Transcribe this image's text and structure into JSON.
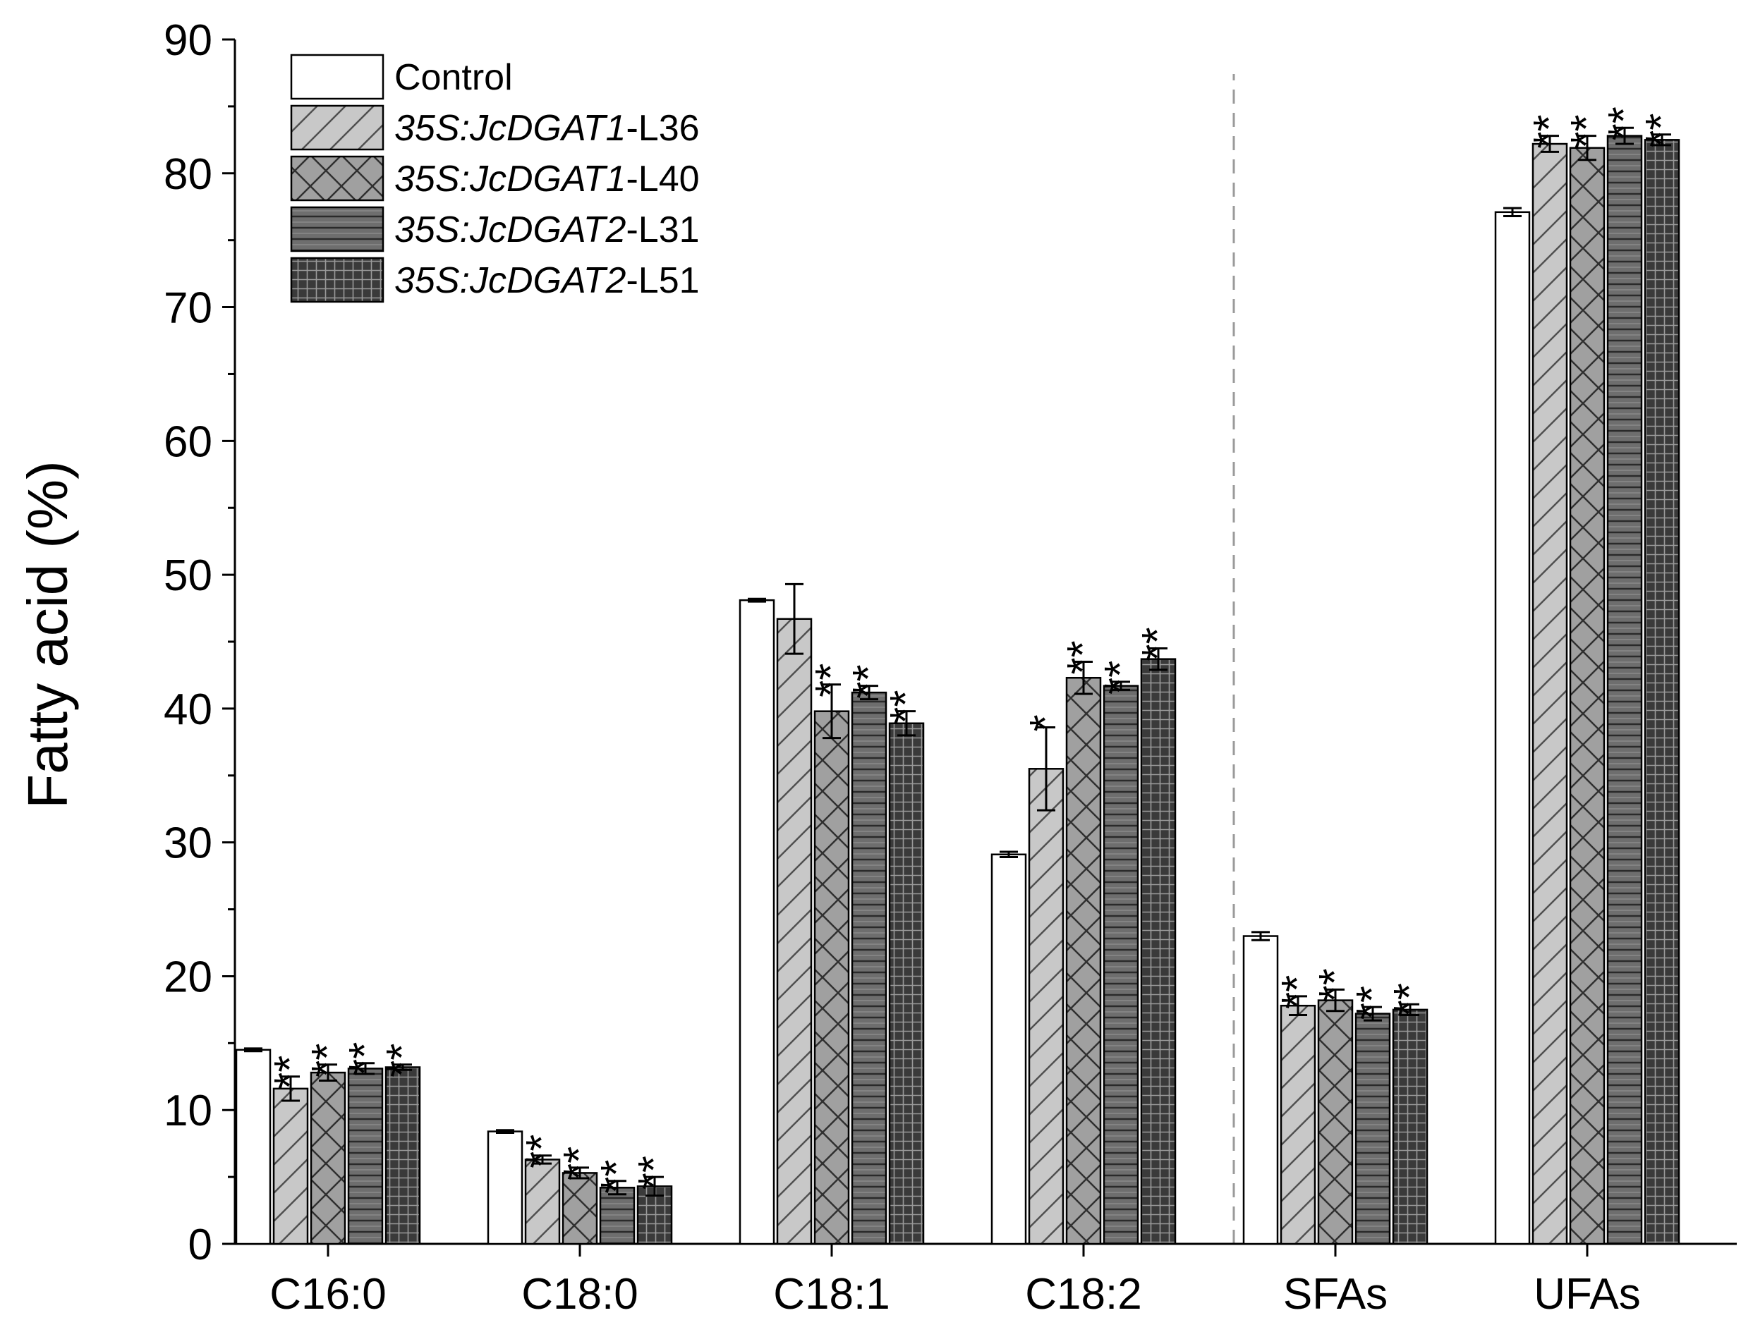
{
  "chart_data": {
    "type": "bar",
    "title": "",
    "xlabel": "",
    "ylabel": "Fatty acid (%)",
    "ylim": [
      0,
      90
    ],
    "yticks": [
      0,
      10,
      20,
      30,
      40,
      50,
      60,
      70,
      80,
      90
    ],
    "grid": false,
    "legend_position": "top-left",
    "separator_between": [
      "C18:2",
      "SFAs"
    ],
    "categories": [
      "C16:0",
      "C18:0",
      "C18:1",
      "C18:2",
      "SFAs",
      "UFAs"
    ],
    "series": [
      {
        "name": "Control",
        "legend_parts": [
          {
            "text": "Control",
            "italic": false
          }
        ],
        "pattern": "none",
        "color": "#ffffff",
        "values": [
          14.5,
          8.4,
          48.1,
          29.1,
          23.0,
          77.1
        ],
        "errors": [
          0.1,
          0.1,
          0.1,
          0.2,
          0.3,
          0.3
        ],
        "significance": [
          "",
          "",
          "",
          "",
          "",
          ""
        ]
      },
      {
        "name": "35S:JcDGAT1-L36",
        "legend_parts": [
          {
            "text": "35S:JcDGAT1",
            "italic": true
          },
          {
            "text": "-L36",
            "italic": false
          }
        ],
        "pattern": "diagonal",
        "color": "#c8c8c8",
        "values": [
          11.6,
          6.3,
          46.7,
          35.5,
          17.8,
          82.2
        ],
        "errors": [
          0.9,
          0.3,
          2.6,
          3.1,
          0.7,
          0.6
        ],
        "significance": [
          "**",
          "**",
          "",
          "*",
          "**",
          "**"
        ]
      },
      {
        "name": "35S:JcDGAT1-L40",
        "legend_parts": [
          {
            "text": "35S:JcDGAT1",
            "italic": true
          },
          {
            "text": "-L40",
            "italic": false
          }
        ],
        "pattern": "crosshatch",
        "color": "#a0a0a0",
        "values": [
          12.8,
          5.3,
          39.8,
          42.3,
          18.2,
          81.9
        ],
        "errors": [
          0.6,
          0.4,
          2.0,
          1.2,
          0.8,
          0.9
        ],
        "significance": [
          "**",
          "**",
          "**",
          "**",
          "**",
          "**"
        ]
      },
      {
        "name": "35S:JcDGAT2-L31",
        "legend_parts": [
          {
            "text": "35S:JcDGAT2",
            "italic": true
          },
          {
            "text": "-L31",
            "italic": false
          }
        ],
        "pattern": "horizontal",
        "color": "#6e6e6e",
        "values": [
          13.1,
          4.2,
          41.2,
          41.7,
          17.2,
          82.8
        ],
        "errors": [
          0.4,
          0.5,
          0.5,
          0.3,
          0.5,
          0.6
        ],
        "significance": [
          "**",
          "**",
          "**",
          "**",
          "**",
          "**"
        ]
      },
      {
        "name": "35S:JcDGAT2-L51",
        "legend_parts": [
          {
            "text": "35S:JcDGAT2",
            "italic": true
          },
          {
            "text": "-L51",
            "italic": false
          }
        ],
        "pattern": "grid",
        "color": "#3c3c3c",
        "values": [
          13.2,
          4.3,
          38.9,
          43.7,
          17.5,
          82.5
        ],
        "errors": [
          0.2,
          0.7,
          0.9,
          0.8,
          0.4,
          0.4
        ],
        "significance": [
          "**",
          "**",
          "**",
          "**",
          "**",
          "**"
        ]
      }
    ]
  }
}
